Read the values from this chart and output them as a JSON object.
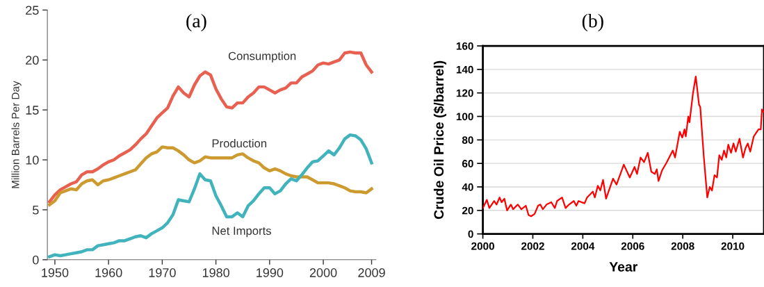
{
  "chart_data": [
    {
      "type": "line",
      "title": "(a)",
      "ylabel": "Million Barrels Per Day",
      "x": [
        1949,
        1950,
        1951,
        1952,
        1953,
        1954,
        1955,
        1956,
        1957,
        1958,
        1959,
        1960,
        1961,
        1962,
        1963,
        1964,
        1965,
        1966,
        1967,
        1968,
        1969,
        1970,
        1971,
        1972,
        1973,
        1974,
        1975,
        1976,
        1977,
        1978,
        1979,
        1980,
        1981,
        1982,
        1983,
        1984,
        1985,
        1986,
        1987,
        1988,
        1989,
        1990,
        1991,
        1992,
        1993,
        1994,
        1995,
        1996,
        1997,
        1998,
        1999,
        2000,
        2001,
        2002,
        2003,
        2004,
        2005,
        2006,
        2007,
        2008,
        2009
      ],
      "series": [
        {
          "name": "Consumption",
          "color": "#e8604f",
          "values": [
            5.8,
            6.5,
            7.0,
            7.3,
            7.6,
            7.8,
            8.5,
            8.8,
            8.8,
            9.1,
            9.5,
            9.8,
            10.0,
            10.4,
            10.7,
            11.0,
            11.5,
            12.1,
            12.6,
            13.4,
            14.2,
            14.7,
            15.2,
            16.4,
            17.3,
            16.7,
            16.3,
            17.5,
            18.4,
            18.8,
            18.5,
            17.1,
            16.1,
            15.3,
            15.2,
            15.7,
            15.7,
            16.3,
            16.7,
            17.3,
            17.3,
            17.0,
            16.7,
            17.0,
            17.2,
            17.7,
            17.7,
            18.3,
            18.6,
            18.9,
            19.5,
            19.7,
            19.6,
            19.8,
            20.0,
            20.7,
            20.8,
            20.7,
            20.7,
            19.5,
            18.8
          ]
        },
        {
          "name": "Production",
          "color": "#cc9a2e",
          "values": [
            5.5,
            5.9,
            6.7,
            6.9,
            7.1,
            7.0,
            7.6,
            7.9,
            8.0,
            7.5,
            7.9,
            8.0,
            8.2,
            8.4,
            8.6,
            8.8,
            9.0,
            9.6,
            10.2,
            10.6,
            10.8,
            11.3,
            11.2,
            11.2,
            10.9,
            10.5,
            10.0,
            9.7,
            9.9,
            10.3,
            10.2,
            10.2,
            10.2,
            10.2,
            10.2,
            10.5,
            10.6,
            10.2,
            9.9,
            9.7,
            9.2,
            8.9,
            9.1,
            8.9,
            8.6,
            8.4,
            8.3,
            8.3,
            8.3,
            8.0,
            7.7,
            7.7,
            7.7,
            7.6,
            7.4,
            7.2,
            6.9,
            6.8,
            6.8,
            6.7,
            7.1
          ]
        },
        {
          "name": "Net Imports",
          "color": "#41b3bd",
          "values": [
            0.3,
            0.5,
            0.4,
            0.5,
            0.6,
            0.7,
            0.8,
            1.0,
            1.0,
            1.4,
            1.5,
            1.6,
            1.7,
            1.9,
            1.9,
            2.1,
            2.3,
            2.4,
            2.2,
            2.6,
            2.9,
            3.2,
            3.7,
            4.5,
            6.0,
            5.9,
            5.8,
            7.1,
            8.6,
            8.0,
            7.9,
            6.4,
            5.4,
            4.3,
            4.3,
            4.7,
            4.3,
            5.4,
            5.9,
            6.6,
            7.2,
            7.2,
            6.6,
            6.9,
            7.6,
            8.1,
            7.9,
            8.5,
            9.2,
            9.8,
            9.9,
            10.4,
            10.9,
            10.5,
            11.2,
            12.1,
            12.5,
            12.4,
            12.0,
            11.1,
            9.7
          ]
        }
      ],
      "xlim": [
        1948.6,
        2009.8
      ],
      "xticks": [
        1950,
        1960,
        1970,
        1980,
        1990,
        2000,
        2009
      ],
      "ylim": [
        0,
        25
      ],
      "yticks": [
        0,
        5,
        10,
        15,
        20,
        25
      ],
      "grid": false,
      "legend": false
    },
    {
      "type": "line",
      "title": "(b)",
      "xlabel": "Year",
      "ylabel": "Crude Oil Price ($/barrel)",
      "series": [
        {
          "color": "#ff0000",
          "x": [
            2000.0,
            2000.16,
            2000.26,
            2000.45,
            2000.55,
            2000.67,
            2000.75,
            2000.86,
            2000.97,
            2001.12,
            2001.21,
            2001.4,
            2001.54,
            2001.72,
            2001.83,
            2001.93,
            2002.07,
            2002.21,
            2002.3,
            2002.4,
            2002.55,
            2002.74,
            2002.88,
            2002.97,
            2003.17,
            2003.31,
            2003.45,
            2003.64,
            2003.74,
            2003.83,
            2004.07,
            2004.17,
            2004.4,
            2004.48,
            2004.6,
            2004.7,
            2004.81,
            2004.93,
            2005.21,
            2005.35,
            2005.64,
            2005.88,
            2006.07,
            2006.17,
            2006.31,
            2006.45,
            2006.6,
            2006.74,
            2006.88,
            2006.96,
            2007.03,
            2007.17,
            2007.36,
            2007.6,
            2007.69,
            2007.88,
            2007.98,
            2008.07,
            2008.12,
            2008.22,
            2008.27,
            2008.41,
            2008.52,
            2008.65,
            2008.7,
            2008.84,
            2008.98,
            2009.08,
            2009.17,
            2009.27,
            2009.37,
            2009.46,
            2009.56,
            2009.65,
            2009.74,
            2009.82,
            2009.93,
            2010.03,
            2010.12,
            2010.27,
            2010.41,
            2010.51,
            2010.6,
            2010.7,
            2010.84,
            2011.03,
            2011.12,
            2011.17,
            2011.23
          ],
          "values": [
            22,
            29,
            22,
            28,
            25,
            31,
            27,
            30,
            20,
            25,
            21,
            25,
            21,
            24,
            16,
            15,
            17,
            24,
            25,
            21,
            25,
            27,
            22,
            28,
            31,
            22,
            25,
            28,
            24,
            28,
            26,
            31,
            36,
            31,
            41,
            37,
            46,
            30,
            47,
            42,
            59,
            48,
            57,
            51,
            65,
            61,
            69,
            53,
            51,
            55,
            45,
            54,
            61,
            71,
            65,
            87,
            82,
            89,
            83,
            100,
            95,
            120,
            134,
            110,
            108,
            66,
            31,
            40,
            37,
            50,
            48,
            67,
            63,
            71,
            65,
            76,
            69,
            77,
            70,
            81,
            65,
            73,
            77,
            70,
            83,
            89,
            89,
            106,
            104
          ]
        }
      ],
      "xlim": [
        2000,
        2011.25
      ],
      "xticks": [
        2000,
        2002,
        2004,
        2006,
        2008,
        2010
      ],
      "ylim": [
        0,
        160
      ],
      "yticks": [
        0,
        20,
        40,
        60,
        80,
        100,
        120,
        140,
        160
      ],
      "grid": "y",
      "legend": false
    }
  ]
}
